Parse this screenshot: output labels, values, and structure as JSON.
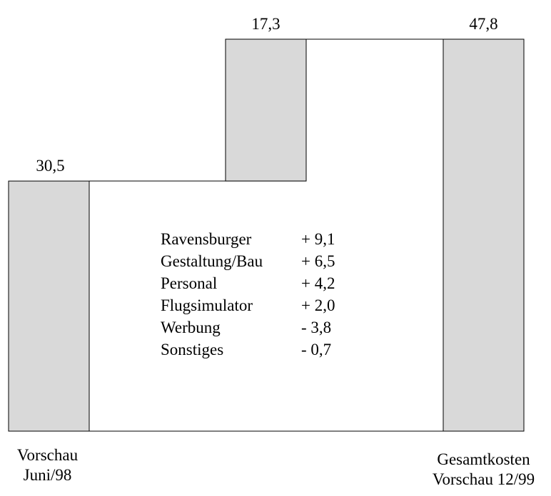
{
  "chart_data": {
    "type": "waterfall",
    "categories": [
      [
        "Vorschau",
        "Juni/98"
      ],
      null,
      [
        "Gesamtkosten",
        "Vorschau 12/99"
      ]
    ],
    "values": [
      30.5,
      17.3,
      47.8
    ],
    "value_labels": [
      "30,5",
      "17,3",
      "47,8"
    ],
    "measure": [
      "absolute",
      "relative",
      "total"
    ],
    "color": "#d9d9d9",
    "breakdown": [
      {
        "name": "Ravensburger",
        "label": "+ 9,1"
      },
      {
        "name": "Gestaltung/Bau",
        "label": "+ 6,5"
      },
      {
        "name": "Personal",
        "label": "+ 4,2"
      },
      {
        "name": "Flugsimulator",
        "label": "+ 2,0"
      },
      {
        "name": "Werbung",
        "label": "- 3,8"
      },
      {
        "name": "Sonstiges",
        "label": "- 0,7"
      }
    ]
  }
}
